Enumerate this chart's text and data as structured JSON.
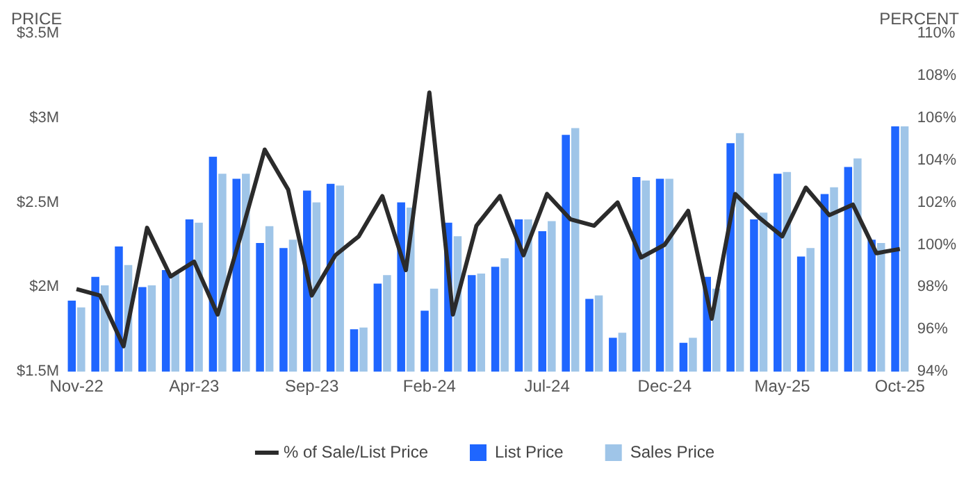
{
  "chart_data": {
    "type": "bar",
    "ylabel": "PRICE",
    "y2label": "PERCENT",
    "categories": [
      "Nov-22",
      null,
      null,
      null,
      null,
      "Apr-23",
      null,
      null,
      null,
      null,
      "Sep-23",
      null,
      null,
      null,
      null,
      "Feb-24",
      null,
      null,
      null,
      null,
      "Jul-24",
      null,
      null,
      null,
      null,
      "Dec-24",
      null,
      null,
      null,
      null,
      "May-25",
      null,
      null,
      null,
      null,
      "Oct-25"
    ],
    "series": [
      {
        "name": "% of Sale/List Price",
        "type": "line",
        "axis": "y2",
        "color": "#2b2b2b",
        "values": [
          97.9,
          97.6,
          95.2,
          100.8,
          98.5,
          99.2,
          96.7,
          100.5,
          104.5,
          102.6,
          97.6,
          99.5,
          100.4,
          102.3,
          98.8,
          107.2,
          96.7,
          100.9,
          102.3,
          99.5,
          102.4,
          101.2,
          100.9,
          102.0,
          99.4,
          100.0,
          101.6,
          96.5,
          102.4,
          101.3,
          100.4,
          102.7,
          101.4,
          101.9,
          99.6,
          99.8
        ]
      },
      {
        "name": "List Price",
        "color": "#1f66ff",
        "values": [
          1920000,
          2060000,
          2240000,
          2000000,
          2100000,
          2400000,
          2770000,
          2640000,
          2260000,
          2230000,
          2570000,
          2610000,
          1750000,
          2020000,
          2500000,
          1860000,
          2380000,
          2070000,
          2120000,
          2400000,
          2330000,
          2900000,
          1930000,
          1700000,
          2650000,
          2640000,
          1670000,
          2060000,
          2850000,
          2400000,
          2670000,
          2180000,
          2550000,
          2710000,
          2280000,
          2950000
        ]
      },
      {
        "name": "Sales Price",
        "color": "#9fc5e8",
        "values": [
          1880000,
          2010000,
          2130000,
          2010000,
          2080000,
          2380000,
          2670000,
          2670000,
          2360000,
          2280000,
          2500000,
          2600000,
          1760000,
          2070000,
          2470000,
          1990000,
          2300000,
          2080000,
          2170000,
          2400000,
          2390000,
          2940000,
          1950000,
          1730000,
          2630000,
          2640000,
          1700000,
          1990000,
          2910000,
          2440000,
          2680000,
          2230000,
          2590000,
          2760000,
          2260000,
          2950000
        ]
      }
    ],
    "ylim": [
      1500000,
      3500000
    ],
    "yticks": [
      {
        "value": 1500000,
        "label": "$1.5M"
      },
      {
        "value": 2000000,
        "label": "$2M"
      },
      {
        "value": 2500000,
        "label": "$2.5M"
      },
      {
        "value": 3000000,
        "label": "$3M"
      },
      {
        "value": 3500000,
        "label": "$3.5M"
      }
    ],
    "y2lim": [
      94,
      110
    ],
    "y2ticks": [
      {
        "value": 94,
        "label": "94%"
      },
      {
        "value": 96,
        "label": "96%"
      },
      {
        "value": 98,
        "label": "98%"
      },
      {
        "value": 100,
        "label": "100%"
      },
      {
        "value": 102,
        "label": "102%"
      },
      {
        "value": 104,
        "label": "104%"
      },
      {
        "value": 106,
        "label": "106%"
      },
      {
        "value": 108,
        "label": "108%"
      },
      {
        "value": 110,
        "label": "110%"
      }
    ],
    "grid": false,
    "legend": "bottom",
    "marker": "none",
    "line_style": "solid"
  }
}
